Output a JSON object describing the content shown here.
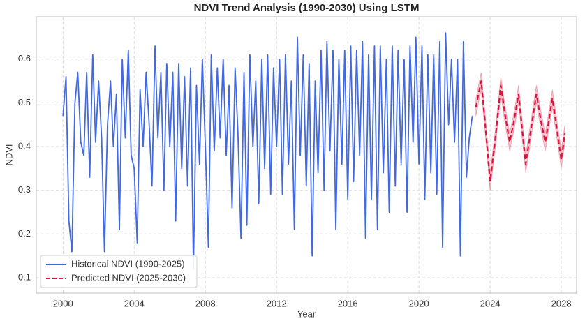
{
  "chart_data": {
    "type": "line",
    "title": "NDVI Trend Analysis (1990-2030) Using LSTM",
    "x_label": "Year",
    "y_label": "NDVI",
    "xlim": [
      1998.5,
      2028.86
    ],
    "ylim": [
      0.065,
      0.697
    ],
    "xticks": [
      2000,
      2004,
      2008,
      2012,
      2016,
      2020,
      2024,
      2028
    ],
    "yticks": [
      0.1,
      0.2,
      0.3,
      0.4,
      0.5,
      0.6
    ],
    "grid": true,
    "legend": "lower left",
    "series": [
      {
        "name": "Historical NDVI (1990-2025)",
        "color": "#4169e1",
        "dash": false,
        "x": [
          2000,
          2000.17,
          2000.33,
          2000.5,
          2000.67,
          2000.83,
          2001,
          2001.17,
          2001.33,
          2001.5,
          2001.67,
          2001.83,
          2002,
          2002.17,
          2002.33,
          2002.5,
          2002.67,
          2002.83,
          2003,
          2003.17,
          2003.33,
          2003.5,
          2003.67,
          2003.83,
          2004,
          2004.17,
          2004.33,
          2004.5,
          2004.67,
          2004.83,
          2005,
          2005.17,
          2005.33,
          2005.5,
          2005.67,
          2005.83,
          2006,
          2006.17,
          2006.33,
          2006.5,
          2006.67,
          2006.83,
          2007,
          2007.17,
          2007.33,
          2007.5,
          2007.67,
          2007.83,
          2008,
          2008.17,
          2008.33,
          2008.5,
          2008.67,
          2008.83,
          2009,
          2009.17,
          2009.33,
          2009.5,
          2009.67,
          2009.83,
          2010,
          2010.17,
          2010.33,
          2010.5,
          2010.67,
          2010.83,
          2011,
          2011.17,
          2011.33,
          2011.5,
          2011.67,
          2011.83,
          2012,
          2012.17,
          2012.33,
          2012.5,
          2012.67,
          2012.83,
          2013,
          2013.17,
          2013.33,
          2013.5,
          2013.67,
          2013.83,
          2014,
          2014.17,
          2014.33,
          2014.5,
          2014.67,
          2014.83,
          2015,
          2015.17,
          2015.33,
          2015.5,
          2015.67,
          2015.83,
          2016,
          2016.17,
          2016.33,
          2016.5,
          2016.67,
          2016.83,
          2017,
          2017.17,
          2017.33,
          2017.5,
          2017.67,
          2017.83,
          2018,
          2018.17,
          2018.33,
          2018.5,
          2018.67,
          2018.83,
          2019,
          2019.17,
          2019.33,
          2019.5,
          2019.67,
          2019.83,
          2020,
          2020.17,
          2020.33,
          2020.5,
          2020.67,
          2020.83,
          2021,
          2021.17,
          2021.33,
          2021.5,
          2021.67,
          2021.83,
          2022,
          2022.17,
          2022.33,
          2022.5,
          2022.67,
          2022.83,
          2023
        ],
        "values": [
          0.47,
          0.56,
          0.23,
          0.16,
          0.5,
          0.57,
          0.41,
          0.38,
          0.57,
          0.33,
          0.61,
          0.41,
          0.55,
          0.42,
          0.16,
          0.45,
          0.55,
          0.4,
          0.52,
          0.21,
          0.6,
          0.42,
          0.62,
          0.38,
          0.35,
          0.18,
          0.53,
          0.4,
          0.57,
          0.46,
          0.31,
          0.63,
          0.42,
          0.57,
          0.3,
          0.59,
          0.4,
          0.57,
          0.23,
          0.59,
          0.35,
          0.56,
          0.31,
          0.58,
          0.12,
          0.54,
          0.36,
          0.6,
          0.4,
          0.17,
          0.61,
          0.39,
          0.58,
          0.42,
          0.6,
          0.38,
          0.54,
          0.26,
          0.58,
          0.43,
          0.19,
          0.57,
          0.22,
          0.61,
          0.4,
          0.55,
          0.27,
          0.6,
          0.35,
          0.61,
          0.29,
          0.58,
          0.4,
          0.6,
          0.29,
          0.61,
          0.36,
          0.55,
          0.21,
          0.65,
          0.38,
          0.61,
          0.31,
          0.59,
          0.15,
          0.55,
          0.34,
          0.62,
          0.3,
          0.64,
          0.39,
          0.62,
          0.21,
          0.6,
          0.36,
          0.62,
          0.28,
          0.63,
          0.32,
          0.62,
          0.38,
          0.64,
          0.19,
          0.61,
          0.28,
          0.63,
          0.21,
          0.63,
          0.34,
          0.6,
          0.25,
          0.63,
          0.31,
          0.62,
          0.36,
          0.6,
          0.25,
          0.63,
          0.41,
          0.65,
          0.36,
          0.63,
          0.28,
          0.61,
          0.34,
          0.61,
          0.29,
          0.64,
          0.17,
          0.66,
          0.45,
          0.6,
          0.41,
          0.6,
          0.15,
          0.64,
          0.33,
          0.42,
          0.47
        ]
      },
      {
        "name": "Predicted NDVI (2025-2030)",
        "color": "#dc143c",
        "dash": true,
        "band": 0.02,
        "x": [
          2023.2,
          2023.5,
          2023.75,
          2024,
          2024.3,
          2024.6,
          2024.85,
          2025.1,
          2025.35,
          2025.6,
          2025.8,
          2026,
          2026.3,
          2026.6,
          2026.85,
          2027.1,
          2027.3,
          2027.5,
          2027.75,
          2028,
          2028.2
        ],
        "values": [
          0.49,
          0.55,
          0.44,
          0.32,
          0.42,
          0.54,
          0.47,
          0.41,
          0.46,
          0.52,
          0.44,
          0.36,
          0.44,
          0.52,
          0.46,
          0.41,
          0.46,
          0.51,
          0.44,
          0.37,
          0.43
        ]
      }
    ]
  }
}
